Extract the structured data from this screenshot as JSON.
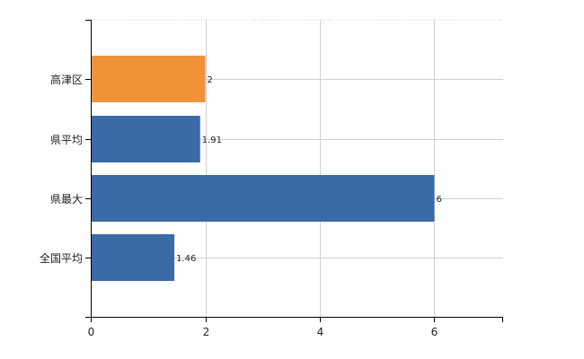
{
  "chart_data": {
    "type": "bar",
    "orientation": "horizontal",
    "categories": [
      "高津区",
      "県平均",
      "県最大",
      "全国平均"
    ],
    "values": [
      2,
      1.91,
      6,
      1.46
    ],
    "value_labels": [
      "2",
      "1.91",
      "6",
      "1.46"
    ],
    "bar_colors": [
      "#f0923a",
      "#3a6aa8",
      "#3a6aa8",
      "#3a6aa8"
    ],
    "xlim": [
      0,
      7.2
    ],
    "x_ticks": [
      0,
      2,
      4,
      6
    ],
    "x_tick_labels": [
      "0",
      "2",
      "4",
      "6"
    ],
    "grid": true,
    "title": "",
    "xlabel": "",
    "ylabel": ""
  }
}
